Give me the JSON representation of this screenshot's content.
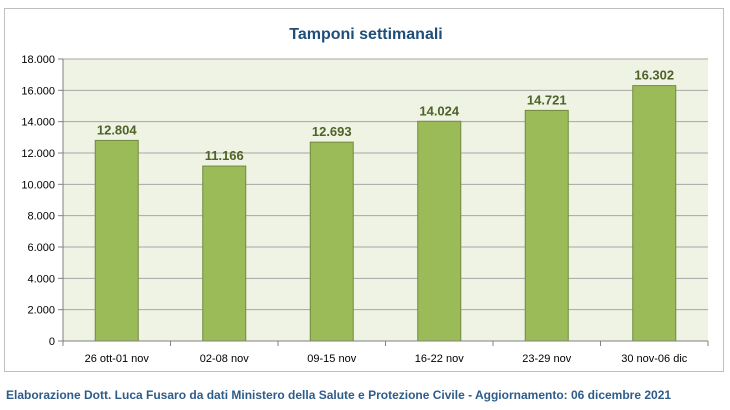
{
  "chart_data": {
    "type": "bar",
    "title": "Tamponi settimanali",
    "xlabel": "",
    "ylabel": "",
    "categories": [
      "26 ott-01 nov",
      "02-08 nov",
      "09-15 nov",
      "16-22 nov",
      "23-29 nov",
      "30 nov-06 dic"
    ],
    "values": [
      12804,
      11166,
      12693,
      14024,
      14721,
      16302
    ],
    "value_labels": [
      "12.804",
      "11.166",
      "12.693",
      "14.024",
      "14.721",
      "16.302"
    ],
    "ylim": [
      0,
      18000
    ],
    "yticks": [
      0,
      2000,
      4000,
      6000,
      8000,
      10000,
      12000,
      14000,
      16000,
      18000
    ],
    "ytick_labels": [
      "0",
      "2.000",
      "4.000",
      "6.000",
      "8.000",
      "10.000",
      "12.000",
      "14.000",
      "16.000",
      "18.000"
    ],
    "grid": true,
    "legend": "none",
    "colors": {
      "bar_fill": "#9bbb59",
      "bar_stroke": "#71893f",
      "plot_bg": "#eef3e4",
      "grid": "#a6a6a6",
      "title": "#1f4e79",
      "value_label": "#4f6228"
    }
  },
  "footer": {
    "note": "Elaborazione Dott. Luca Fusaro da dati Ministero della Salute e Protezione Civile - Aggiornamento: 06 dicembre 2021"
  }
}
